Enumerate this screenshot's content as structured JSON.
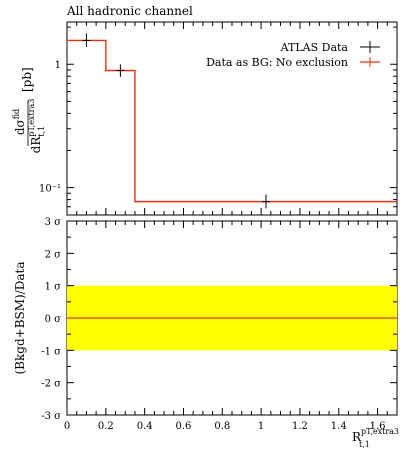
{
  "chart_data": [
    {
      "type": "line",
      "title": "All hadronic channel",
      "ylabel": {
        "main": "dσ",
        "main_sup": "fid",
        "den": "dR",
        "den_sup": "pT,extra3",
        "den_sub": "t,1",
        "unit": "[pb]"
      },
      "yscale": "log",
      "xlim": [
        0,
        1.7
      ],
      "ylim": [
        0.06,
        2.2
      ],
      "yticks": [
        {
          "value": 1,
          "label": "1"
        },
        {
          "value": 0.1,
          "label": "10⁻¹"
        }
      ],
      "legend_position": "top-right",
      "series": [
        {
          "name": "ATLAS Data",
          "kind": "points_with_errorbars",
          "color": "#000000",
          "points": [
            {
              "x": 0.1,
              "y": 1.56,
              "ylo": 1.38,
              "yhi": 1.78,
              "xlo": 0.0,
              "xhi": 0.2
            },
            {
              "x": 0.275,
              "y": 0.89,
              "ylo": 0.79,
              "yhi": 1.0,
              "xlo": 0.2,
              "xhi": 0.35
            },
            {
              "x": 1.025,
              "y": 0.077,
              "ylo": 0.068,
              "yhi": 0.088,
              "xlo": 0.35,
              "xhi": 1.7
            }
          ]
        },
        {
          "name": "Data as BG: No exclusion",
          "kind": "step",
          "color": "#ee3311",
          "bins": [
            {
              "x0": 0.0,
              "x1": 0.2,
              "y": 1.56
            },
            {
              "x0": 0.2,
              "x1": 0.35,
              "y": 0.89
            },
            {
              "x0": 0.35,
              "x1": 1.7,
              "y": 0.077
            }
          ]
        }
      ]
    },
    {
      "type": "line",
      "ylabel": "(Bkgd+BSM)/Data",
      "xlabel_main": "R",
      "xlabel_sup": "pT,extra3",
      "xlabel_sub": "t,1",
      "xlim": [
        0,
        1.7
      ],
      "ylim": [
        -3,
        3
      ],
      "yticks": [
        {
          "value": 3,
          "label": "3 σ"
        },
        {
          "value": 2,
          "label": "2 σ"
        },
        {
          "value": 1,
          "label": "1 σ"
        },
        {
          "value": 0,
          "label": "0 σ"
        },
        {
          "value": -1,
          "label": "-1 σ"
        },
        {
          "value": -2,
          "label": "-2 σ"
        },
        {
          "value": -3,
          "label": "-3 σ"
        }
      ],
      "xticks": [
        {
          "value": 0,
          "label": "0"
        },
        {
          "value": 0.2,
          "label": "0.2"
        },
        {
          "value": 0.4,
          "label": "0.4"
        },
        {
          "value": 0.6,
          "label": "0.6"
        },
        {
          "value": 0.8,
          "label": "0.8"
        },
        {
          "value": 1.0,
          "label": "1"
        },
        {
          "value": 1.2,
          "label": "1.2"
        },
        {
          "value": 1.4,
          "label": "1.4"
        },
        {
          "value": 1.6,
          "label": "1.6"
        }
      ],
      "band": {
        "lo": -1,
        "hi": 1,
        "color": "#ffff00"
      },
      "series": [
        {
          "name": "Data as BG: No exclusion",
          "kind": "line",
          "color": "#ee3311",
          "x": [
            0,
            1.7
          ],
          "y": [
            0,
            0
          ]
        }
      ]
    }
  ]
}
